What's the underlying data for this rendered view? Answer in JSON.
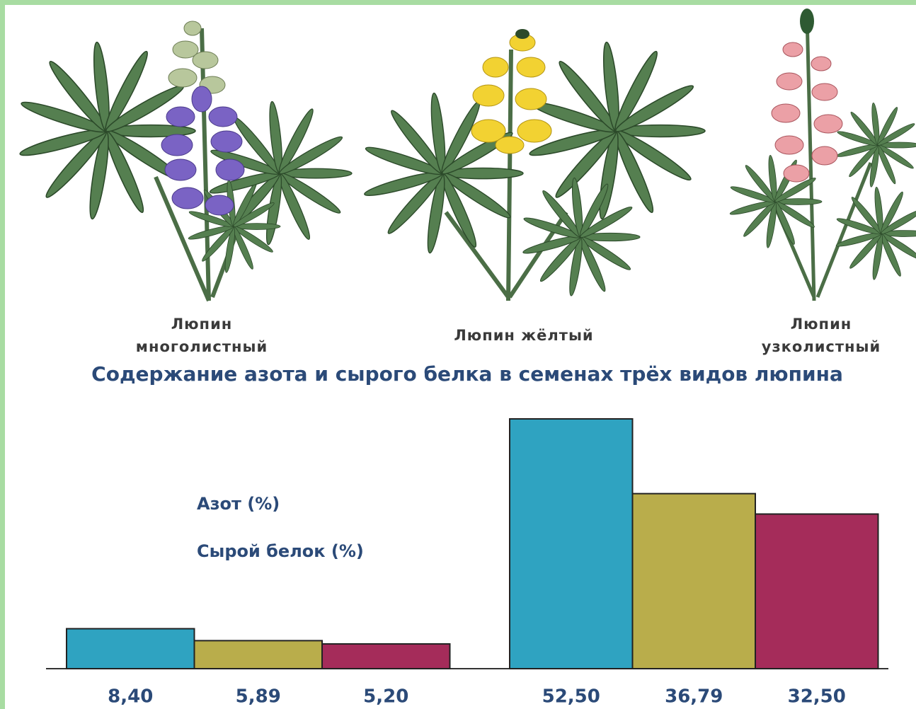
{
  "chart_data": {
    "type": "bar",
    "title": "Содержание азота и сырого белка в семенах трёх видов люпина",
    "categories": [
      "Люпин многолистный",
      "Люпин жёлтый",
      "Люпин узколистный"
    ],
    "colors": [
      "#2fa3c1",
      "#b9ad4b",
      "#a52c5a"
    ],
    "series": [
      {
        "name": "Азот (%)",
        "values": [
          8.4,
          5.89,
          5.2
        ],
        "value_labels": [
          "8,40",
          "5,89",
          "5,20"
        ]
      },
      {
        "name": "Сырой белок (%)",
        "values": [
          52.5,
          36.79,
          32.5
        ],
        "value_labels": [
          "52,50",
          "36,79",
          "32,50"
        ]
      }
    ]
  }
}
